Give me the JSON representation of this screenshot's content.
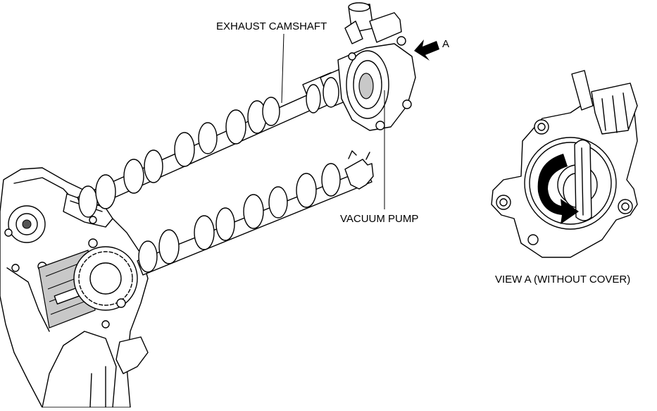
{
  "labels": {
    "exhaust_camshaft": "EXHAUST CAMSHAFT",
    "view_arrow": "A",
    "vacuum_pump": "VACUUM PUMP",
    "view_a": "VIEW A (WITHOUT COVER)"
  },
  "colors": {
    "line": "#000000",
    "background": "#ffffff",
    "shade": "#c8c8c8"
  }
}
